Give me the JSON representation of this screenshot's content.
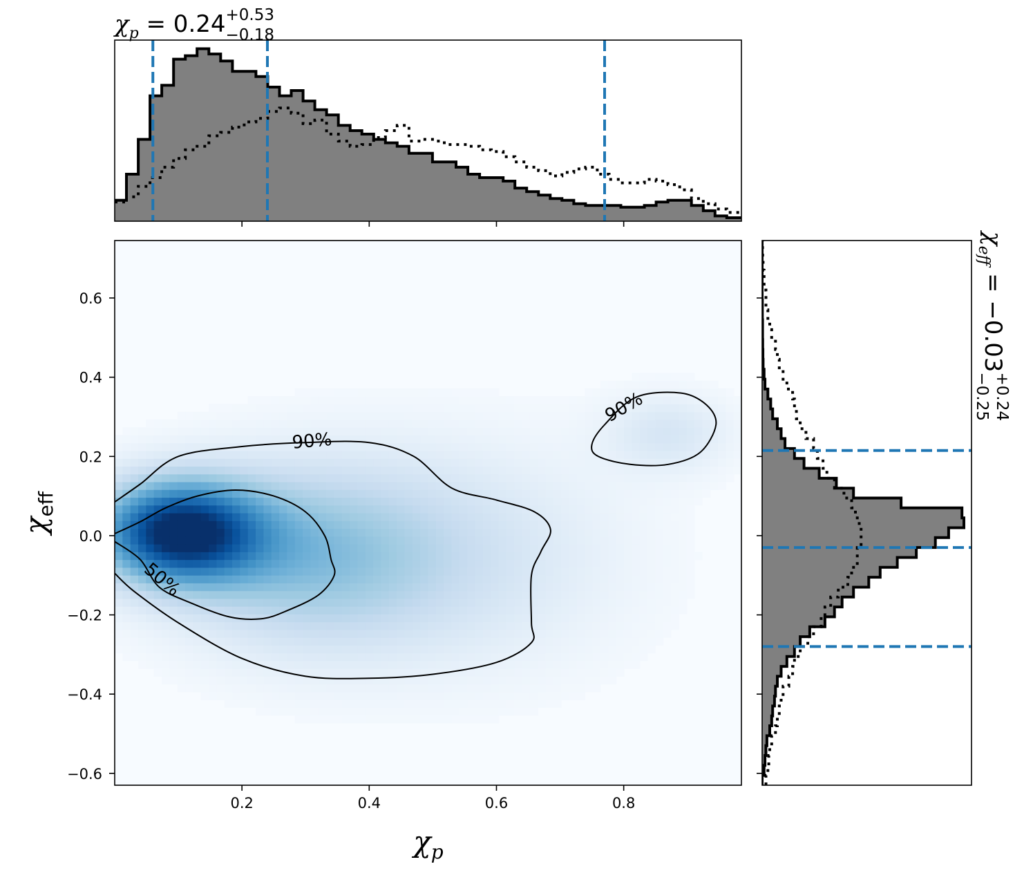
{
  "chart_data": [
    {
      "type": "heatmap",
      "xlabel": "χp",
      "ylabel": "χeff",
      "xlim": [
        0.0,
        0.985
      ],
      "ylim": [
        -0.63,
        0.745
      ],
      "xticks": [
        0.2,
        0.4,
        0.6,
        0.8
      ],
      "yticks": [
        -0.6,
        -0.4,
        -0.2,
        0.0,
        0.2,
        0.4,
        0.6
      ],
      "xtick_labels": [
        "0.2",
        "0.4",
        "0.6",
        "0.8"
      ],
      "ytick_labels": [
        "−0.6",
        "−0.4",
        "−0.2",
        "0.0",
        "0.2",
        "0.4",
        "0.6"
      ],
      "colormap": "Blues",
      "density_peaks": [
        {
          "x": 0.1,
          "y": 0.01,
          "sx": 0.09,
          "sy": 0.09,
          "w": 1.0
        },
        {
          "x": 0.3,
          "y": -0.05,
          "sx": 0.15,
          "sy": 0.16,
          "w": 0.38
        },
        {
          "x": 0.55,
          "y": -0.05,
          "sx": 0.18,
          "sy": 0.2,
          "w": 0.16
        },
        {
          "x": 0.87,
          "y": 0.26,
          "sx": 0.07,
          "sy": 0.07,
          "w": 0.16
        }
      ],
      "contours": [
        {
          "level": "50%",
          "label": "50%",
          "label_at": [
            0.075,
            -0.11
          ],
          "points": [
            [
              0.0,
              0.005
            ],
            [
              0.04,
              0.035
            ],
            [
              0.08,
              0.07
            ],
            [
              0.13,
              0.1
            ],
            [
              0.19,
              0.115
            ],
            [
              0.25,
              0.1
            ],
            [
              0.3,
              0.06
            ],
            [
              0.33,
              0.0
            ],
            [
              0.34,
              -0.06
            ],
            [
              0.345,
              -0.1
            ],
            [
              0.32,
              -0.15
            ],
            [
              0.27,
              -0.19
            ],
            [
              0.23,
              -0.21
            ],
            [
              0.18,
              -0.205
            ],
            [
              0.12,
              -0.17
            ],
            [
              0.07,
              -0.13
            ],
            [
              0.04,
              -0.06
            ],
            [
              0.0,
              -0.015
            ]
          ]
        },
        {
          "level": "90%",
          "label": "90%",
          "label_at": [
            0.31,
            0.24
          ],
          "points": [
            [
              0.0,
              0.085
            ],
            [
              0.04,
              0.13
            ],
            [
              0.1,
              0.2
            ],
            [
              0.2,
              0.225
            ],
            [
              0.3,
              0.235
            ],
            [
              0.4,
              0.235
            ],
            [
              0.47,
              0.2
            ],
            [
              0.53,
              0.12
            ],
            [
              0.6,
              0.09
            ],
            [
              0.66,
              0.06
            ],
            [
              0.685,
              0.015
            ],
            [
              0.67,
              -0.04
            ],
            [
              0.655,
              -0.1
            ],
            [
              0.655,
              -0.22
            ],
            [
              0.655,
              -0.27
            ],
            [
              0.6,
              -0.32
            ],
            [
              0.5,
              -0.35
            ],
            [
              0.4,
              -0.36
            ],
            [
              0.3,
              -0.355
            ],
            [
              0.2,
              -0.31
            ],
            [
              0.1,
              -0.22
            ],
            [
              0.03,
              -0.14
            ],
            [
              0.0,
              -0.095
            ]
          ]
        },
        {
          "level": "90%",
          "label": "90%",
          "label_at": [
            0.8,
            0.325
          ],
          "closed": true,
          "points": [
            [
              0.75,
              0.23
            ],
            [
              0.77,
              0.28
            ],
            [
              0.82,
              0.35
            ],
            [
              0.89,
              0.36
            ],
            [
              0.93,
              0.33
            ],
            [
              0.945,
              0.28
            ],
            [
              0.92,
              0.21
            ],
            [
              0.87,
              0.18
            ],
            [
              0.81,
              0.18
            ],
            [
              0.76,
              0.2
            ]
          ]
        }
      ]
    },
    {
      "type": "area",
      "title": "χp = 0.24+0.53−0.18",
      "title_parts": {
        "symbol": "χ",
        "sub": "p",
        "eq": " = 0.24",
        "sup": "+0.53",
        "lower": "−0.18"
      },
      "x_edges": [
        0.0,
        0.0185,
        0.037,
        0.0555,
        0.074,
        0.0925,
        0.111,
        0.1295,
        0.148,
        0.1665,
        0.185,
        0.2035,
        0.222,
        0.2405,
        0.259,
        0.2775,
        0.296,
        0.3145,
        0.333,
        0.3515,
        0.37,
        0.3885,
        0.407,
        0.4255,
        0.444,
        0.4625,
        0.481,
        0.4995,
        0.518,
        0.5365,
        0.555,
        0.5735,
        0.592,
        0.6105,
        0.629,
        0.6475,
        0.666,
        0.6845,
        0.703,
        0.7215,
        0.74,
        0.7585,
        0.777,
        0.7955,
        0.814,
        0.8325,
        0.851,
        0.8695,
        0.888,
        0.9065,
        0.925,
        0.9435,
        0.962,
        0.985
      ],
      "series": [
        {
          "type": "step-filled",
          "values": [
            0.12,
            0.27,
            0.47,
            0.72,
            0.78,
            0.93,
            0.95,
            0.99,
            0.96,
            0.92,
            0.86,
            0.86,
            0.83,
            0.77,
            0.72,
            0.75,
            0.69,
            0.64,
            0.61,
            0.55,
            0.52,
            0.5,
            0.47,
            0.45,
            0.43,
            0.39,
            0.39,
            0.34,
            0.34,
            0.31,
            0.27,
            0.25,
            0.25,
            0.23,
            0.19,
            0.17,
            0.15,
            0.13,
            0.12,
            0.1,
            0.09,
            0.09,
            0.09,
            0.08,
            0.08,
            0.09,
            0.11,
            0.12,
            0.12,
            0.09,
            0.06,
            0.03,
            0.02
          ]
        },
        {
          "type": "step-dotted",
          "values": [
            0.11,
            0.14,
            0.2,
            0.25,
            0.31,
            0.36,
            0.41,
            0.43,
            0.49,
            0.51,
            0.54,
            0.57,
            0.59,
            0.63,
            0.65,
            0.62,
            0.56,
            0.58,
            0.5,
            0.46,
            0.43,
            0.44,
            0.48,
            0.52,
            0.55,
            0.46,
            0.47,
            0.46,
            0.44,
            0.44,
            0.43,
            0.41,
            0.4,
            0.37,
            0.34,
            0.31,
            0.29,
            0.26,
            0.28,
            0.3,
            0.31,
            0.27,
            0.24,
            0.22,
            0.22,
            0.24,
            0.23,
            0.21,
            0.18,
            0.13,
            0.1,
            0.07,
            0.05
          ]
        }
      ],
      "vlines": [
        0.06,
        0.24,
        0.77
      ]
    },
    {
      "type": "area",
      "title": "χeff = −0.03+0.24−0.25",
      "title_parts": {
        "symbol": "χ",
        "sub": "eff",
        "eq": " = −0.03",
        "sup": "+0.24",
        "lower": "−0.25"
      },
      "orientation": "horizontal",
      "y_edges": [
        -0.63,
        -0.605,
        -0.58,
        -0.555,
        -0.53,
        -0.505,
        -0.48,
        -0.455,
        -0.43,
        -0.405,
        -0.38,
        -0.355,
        -0.33,
        -0.305,
        -0.28,
        -0.255,
        -0.23,
        -0.205,
        -0.18,
        -0.155,
        -0.13,
        -0.105,
        -0.08,
        -0.055,
        -0.03,
        -0.005,
        0.02,
        0.045,
        0.07,
        0.095,
        0.12,
        0.145,
        0.17,
        0.195,
        0.22,
        0.245,
        0.27,
        0.295,
        0.32,
        0.345,
        0.37,
        0.395,
        0.42,
        0.445,
        0.47,
        0.495,
        0.52,
        0.545,
        0.57,
        0.595,
        0.62,
        0.645,
        0.67,
        0.695,
        0.72,
        0.745
      ],
      "series": [
        {
          "type": "step-filled",
          "values": [
            0.0,
            0.01,
            0.015,
            0.02,
            0.025,
            0.04,
            0.05,
            0.055,
            0.065,
            0.07,
            0.08,
            0.1,
            0.13,
            0.17,
            0.2,
            0.25,
            0.33,
            0.38,
            0.42,
            0.48,
            0.56,
            0.62,
            0.71,
            0.81,
            0.91,
            0.98,
            1.06,
            1.05,
            0.73,
            0.48,
            0.39,
            0.3,
            0.22,
            0.17,
            0.12,
            0.1,
            0.08,
            0.055,
            0.045,
            0.03,
            0.015,
            0.01,
            0.005,
            0.004,
            0.003,
            0.002,
            0.002,
            0.001,
            0.001,
            0.0,
            0.0,
            0.0,
            0.0,
            0.0,
            0.0
          ]
        },
        {
          "type": "step-dotted",
          "values": [
            0.02,
            0.03,
            0.035,
            0.04,
            0.05,
            0.07,
            0.08,
            0.09,
            0.1,
            0.11,
            0.14,
            0.16,
            0.17,
            0.2,
            0.24,
            0.27,
            0.31,
            0.33,
            0.36,
            0.4,
            0.45,
            0.47,
            0.5,
            0.5,
            0.52,
            0.52,
            0.51,
            0.49,
            0.47,
            0.43,
            0.38,
            0.34,
            0.32,
            0.29,
            0.27,
            0.23,
            0.2,
            0.18,
            0.17,
            0.16,
            0.13,
            0.11,
            0.09,
            0.08,
            0.07,
            0.05,
            0.04,
            0.03,
            0.02,
            0.02,
            0.01,
            0.01,
            0.005,
            0.003,
            0.002
          ]
        }
      ],
      "hlines": [
        0.215,
        -0.03,
        -0.28
      ]
    }
  ],
  "colors": {
    "fill": "#808080",
    "line": "#000000",
    "quantile": "#1f77b4",
    "cmap_low": "#f7fbff",
    "cmap_high": "#08306b"
  }
}
